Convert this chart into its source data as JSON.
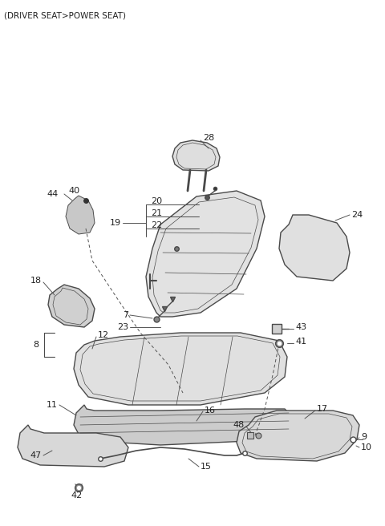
{
  "title": "(DRIVER SEAT>POWER SEAT)",
  "bg_color": "#ffffff",
  "line_color": "#4a4a4a",
  "fill_color": "#e8e8e8",
  "text_color": "#222222",
  "dpi": 100,
  "figw": 4.8,
  "figh": 6.56
}
